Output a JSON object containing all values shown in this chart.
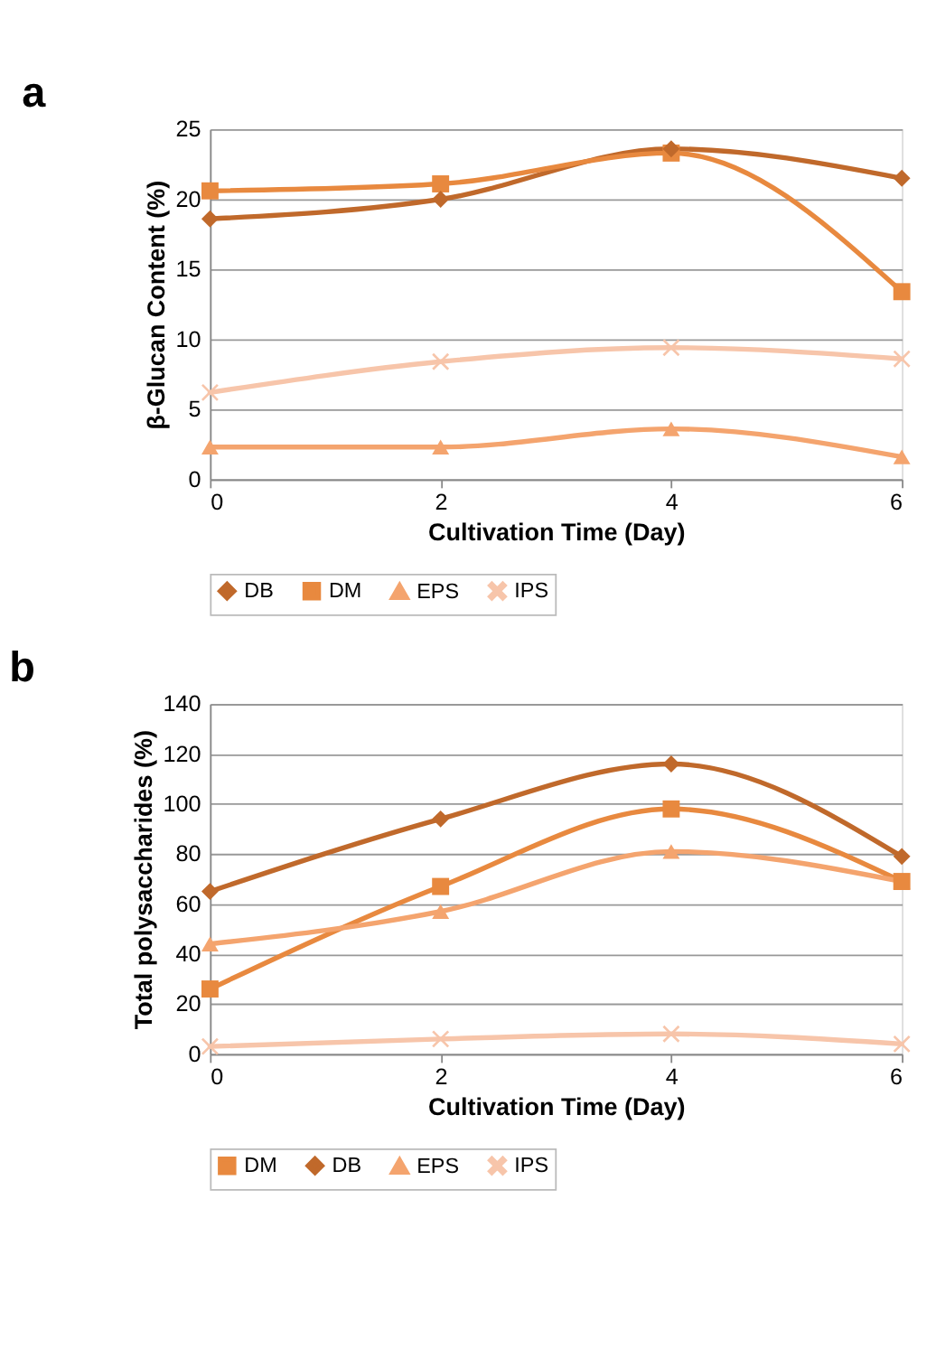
{
  "chart_data": [
    {
      "type": "line",
      "title": "a",
      "xlabel": "Cultivation Time (Day)",
      "ylabel": "β-Glucan Content (%)",
      "x": [
        0,
        2,
        4,
        6
      ],
      "xlim": [
        0,
        6
      ],
      "xticks": [
        0,
        2,
        4,
        6
      ],
      "ylim": [
        0,
        25
      ],
      "yticks": [
        0,
        5,
        10,
        15,
        20,
        25
      ],
      "grid": "y",
      "legend": "bottom",
      "series": [
        {
          "name": "DB",
          "color": "#c0692b",
          "marker": "diamond",
          "values": [
            18.6,
            20.0,
            23.6,
            21.5
          ]
        },
        {
          "name": "DM",
          "color": "#e8893f",
          "marker": "square",
          "values": [
            20.6,
            21.1,
            23.3,
            13.4
          ]
        },
        {
          "name": "EPS",
          "color": "#f4a46e",
          "marker": "triangle",
          "values": [
            2.3,
            2.3,
            3.6,
            1.6
          ]
        },
        {
          "name": "IPS",
          "color": "#f7c5aa",
          "marker": "cross",
          "values": [
            6.2,
            8.4,
            9.4,
            8.6
          ]
        }
      ]
    },
    {
      "type": "line",
      "title": "b",
      "xlabel": "Cultivation Time (Day)",
      "ylabel": "Total polysaccharides (%)",
      "x": [
        0,
        2,
        4,
        6
      ],
      "xlim": [
        0,
        6
      ],
      "xticks": [
        0,
        2,
        4,
        6
      ],
      "ylim": [
        0,
        140
      ],
      "yticks": [
        0,
        20,
        40,
        60,
        80,
        100,
        120,
        140
      ],
      "grid": "y",
      "legend": "bottom",
      "series": [
        {
          "name": "DM",
          "color": "#e8893f",
          "marker": "square",
          "values": [
            26,
            67,
            98,
            69
          ]
        },
        {
          "name": "DB",
          "color": "#c0692b",
          "marker": "diamond",
          "values": [
            65,
            94,
            116,
            79
          ]
        },
        {
          "name": "EPS",
          "color": "#f4a46e",
          "marker": "triangle",
          "values": [
            44,
            57,
            81,
            69
          ]
        },
        {
          "name": "IPS",
          "color": "#f7c5aa",
          "marker": "cross",
          "values": [
            3,
            6,
            8,
            4
          ]
        }
      ]
    }
  ]
}
